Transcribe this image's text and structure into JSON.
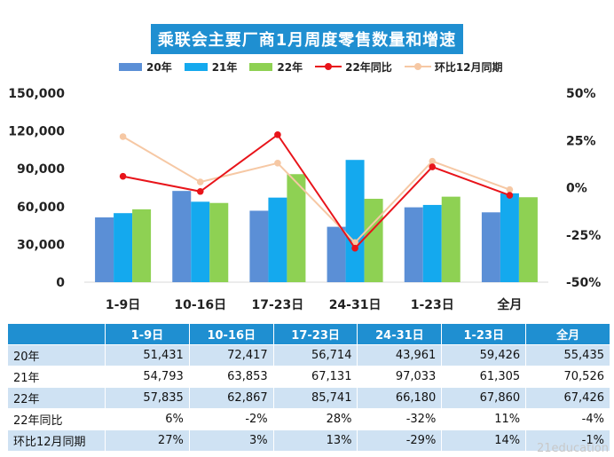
{
  "chart_data": {
    "type": "bar",
    "title": "乘联会主要厂商1月周度零售数量和增速",
    "categories": [
      "1-9日",
      "10-16日",
      "17-23日",
      "24-31日",
      "1-23日",
      "全月"
    ],
    "series": [
      {
        "name": "20年",
        "type": "bar",
        "axis": "left",
        "color": "#5b8fd6",
        "values": [
          51431,
          72417,
          56714,
          43961,
          59426,
          55435
        ]
      },
      {
        "name": "21年",
        "type": "bar",
        "axis": "left",
        "color": "#14a9ee",
        "values": [
          54793,
          63853,
          67131,
          97033,
          61305,
          70526
        ]
      },
      {
        "name": "22年",
        "type": "bar",
        "axis": "left",
        "color": "#8ed153",
        "values": [
          57835,
          62867,
          85741,
          66180,
          67860,
          67426
        ]
      },
      {
        "name": "22年同比",
        "type": "line",
        "axis": "right",
        "color": "#e8141a",
        "values": [
          6,
          -2,
          28,
          -32,
          11,
          -4
        ]
      },
      {
        "name": "环比12月同期",
        "type": "line",
        "axis": "right",
        "color": "#f6c8a4",
        "values": [
          27,
          3,
          13,
          -29,
          14,
          -1
        ]
      }
    ],
    "y_left": {
      "range": [
        0,
        150000
      ],
      "ticks": [
        "150,000",
        "120,000",
        "90,000",
        "60,000",
        "30,000",
        "0"
      ]
    },
    "y_right": {
      "range": [
        -50,
        50
      ],
      "ticks": [
        "50%",
        "25%",
        "0%",
        "-25%",
        "-50%"
      ]
    },
    "legend_position": "top",
    "grid": false
  },
  "table": {
    "header": [
      "",
      "1-9日",
      "10-16日",
      "17-23日",
      "24-31日",
      "1-23日",
      "全月"
    ],
    "rows": [
      [
        "20年",
        "51,431",
        "72,417",
        "56,714",
        "43,961",
        "59,426",
        "55,435"
      ],
      [
        "21年",
        "54,793",
        "63,853",
        "67,131",
        "97,033",
        "61,305",
        "70,526"
      ],
      [
        "22年",
        "57,835",
        "62,867",
        "85,741",
        "66,180",
        "67,860",
        "67,426"
      ],
      [
        "22年同比",
        "6%",
        "-2%",
        "28%",
        "-32%",
        "11%",
        "-4%"
      ],
      [
        "环比12月同期",
        "27%",
        "3%",
        "13%",
        "-29%",
        "14%",
        "-1%"
      ]
    ]
  },
  "watermark": "21education"
}
